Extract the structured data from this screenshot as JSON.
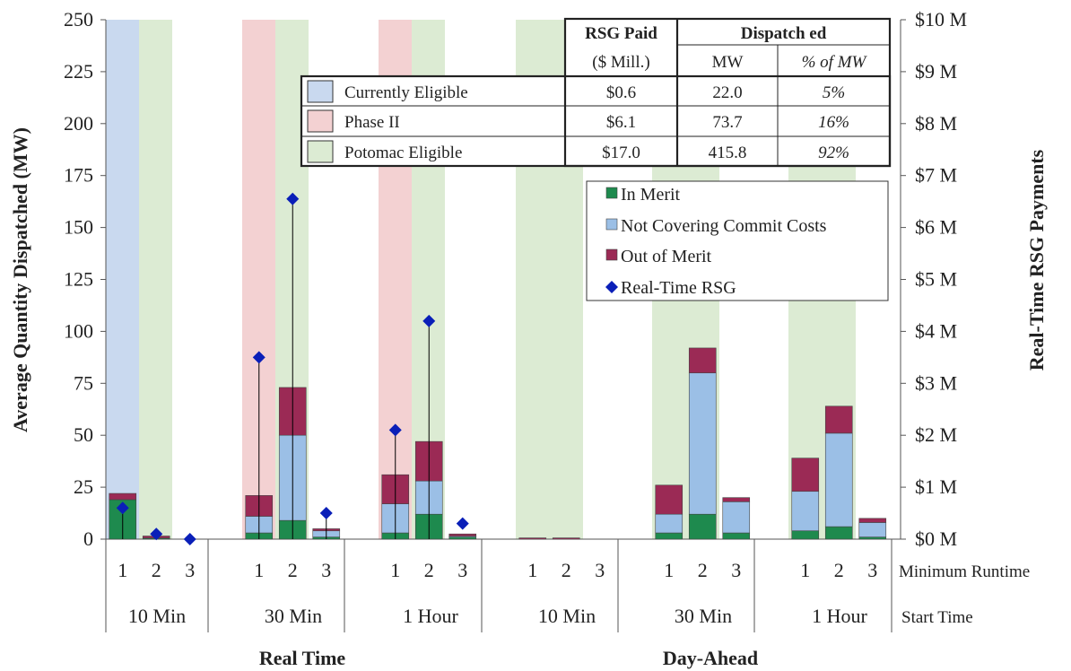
{
  "chart_data": {
    "type": "bar",
    "stacked": true,
    "ylabel": "Average Quantity Dispatched (MW)",
    "y2label": "Real-Time RSG Payments",
    "ylim": [
      0,
      250
    ],
    "yticks": [
      "0",
      "25",
      "50",
      "75",
      "100",
      "125",
      "150",
      "175",
      "200",
      "225",
      "250"
    ],
    "y2lim": [
      0,
      10
    ],
    "y2ticks": [
      "$0 M",
      "$1 M",
      "$2 M",
      "$3 M",
      "$4 M",
      "$5 M",
      "$6 M",
      "$7 M",
      "$8 M",
      "$9 M",
      "$10 M"
    ],
    "min_runtime_label": "Minimum  Runtime",
    "start_time_label": "Start Time",
    "markets": [
      "Real Time",
      "Day-Ahead"
    ],
    "start_times": [
      {
        "label": "10 Min",
        "market": 0
      },
      {
        "label": "30 Min",
        "market": 0
      },
      {
        "label": "1 Hour",
        "market": 0
      },
      {
        "label": "10 Min",
        "market": 1
      },
      {
        "label": "30 Min",
        "market": 1
      },
      {
        "label": "1 Hour",
        "market": 1
      }
    ],
    "runtimes": [
      "1",
      "2",
      "3"
    ],
    "series": [
      {
        "name": "In Merit",
        "color": "#1e8a4e",
        "values": [
          19,
          0.5,
          0,
          3,
          9,
          1,
          3,
          12,
          1,
          0,
          0,
          0,
          3,
          12,
          3,
          4,
          6,
          1
        ]
      },
      {
        "name": "Not Covering Commit Costs",
        "color": "#9bbfe6",
        "values": [
          0,
          0,
          0,
          8,
          41,
          3,
          14,
          16,
          0.5,
          0,
          0,
          0,
          9,
          68,
          15,
          19,
          45,
          7
        ]
      },
      {
        "name": "Out of Merit",
        "color": "#9b2a55",
        "values": [
          3,
          1,
          0,
          10,
          23,
          1,
          14,
          19,
          1,
          0.6,
          0.6,
          0,
          14,
          12,
          2,
          16,
          13,
          2
        ]
      }
    ],
    "rsg_series": {
      "name": "Real-Time RSG",
      "color": "#0a1fb8",
      "values": [
        0.6,
        0.1,
        0,
        3.5,
        6.55,
        0.5,
        2.1,
        4.2,
        0.3
      ]
    },
    "eligibility": [
      {
        "name": "Currently Eligible",
        "color": "#c9d9ef",
        "rsg_paid": "$0.6",
        "mw": "22.0",
        "pct": "5%"
      },
      {
        "name": "Phase II",
        "color": "#f3d1d2",
        "rsg_paid": "$6.1",
        "mw": "73.7",
        "pct": "16%"
      },
      {
        "name": "Potomac Eligible",
        "color": "#dcebd3",
        "rsg_paid": "$17.0",
        "mw": "415.8",
        "pct": "92%"
      }
    ],
    "table_headers": {
      "rsg_paid": "RSG Paid",
      "rsg_paid_unit": "($ Mill.)",
      "dispatched": "Dispatch ed",
      "mw": "MW",
      "pct": "% of MW"
    },
    "legend_placement": "upper-right"
  }
}
